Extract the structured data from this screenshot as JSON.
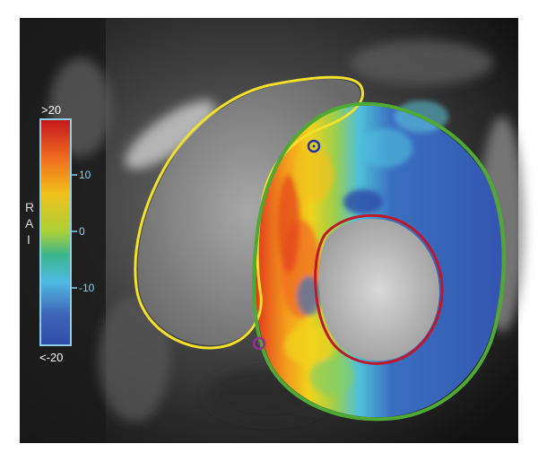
{
  "colorbar": {
    "top_label": ">20",
    "bottom_label": "<-20",
    "ticks": [
      "10",
      "0",
      "-10"
    ],
    "axis_letters": [
      "R",
      "A",
      "I"
    ],
    "colors": [
      "#c3161c",
      "#f06a1f",
      "#f1c21b",
      "#a9d038",
      "#3bb58c",
      "#4fb9e3",
      "#3f66b8",
      "#2f4ca8"
    ]
  },
  "contours": {
    "rv_color": "#f2e02a",
    "epicardium_color": "#4faa33",
    "endocardium_color": "#c0182b",
    "marker_color_1": "#2233aa",
    "marker_color_2": "#9a2a9a"
  }
}
